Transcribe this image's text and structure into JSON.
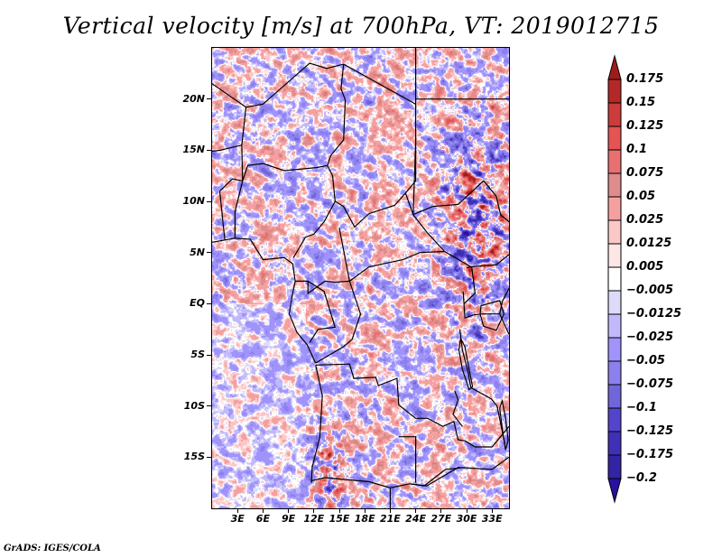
{
  "chart_data": {
    "type": "heatmap",
    "title": "Vertical velocity [m/s] at 700hPa, VT: 2019012715",
    "variable": "Vertical velocity",
    "units": "m/s",
    "level": "700hPa",
    "valid_time": "2019012715",
    "xlabel": "",
    "ylabel": "",
    "xlim": [
      0,
      35
    ],
    "ylim": [
      -20,
      25
    ],
    "x_ticks": [
      {
        "value": 3,
        "label": "3E"
      },
      {
        "value": 6,
        "label": "6E"
      },
      {
        "value": 9,
        "label": "9E"
      },
      {
        "value": 12,
        "label": "12E"
      },
      {
        "value": 15,
        "label": "15E"
      },
      {
        "value": 18,
        "label": "18E"
      },
      {
        "value": 21,
        "label": "21E"
      },
      {
        "value": 24,
        "label": "24E"
      },
      {
        "value": 27,
        "label": "27E"
      },
      {
        "value": 30,
        "label": "30E"
      },
      {
        "value": 33,
        "label": "33E"
      }
    ],
    "y_ticks": [
      {
        "value": 20,
        "label": "20N"
      },
      {
        "value": 15,
        "label": "15N"
      },
      {
        "value": 10,
        "label": "10N"
      },
      {
        "value": 5,
        "label": "5N"
      },
      {
        "value": 0,
        "label": "EQ"
      },
      {
        "value": -5,
        "label": "5S"
      },
      {
        "value": -10,
        "label": "10S"
      },
      {
        "value": -15,
        "label": "15S"
      }
    ],
    "colorbar": {
      "orientation": "vertical",
      "placement": "right",
      "extend": "both",
      "levels": [
        0.175,
        0.15,
        0.125,
        0.1,
        0.075,
        0.05,
        0.025,
        0.0125,
        0.005,
        -0.005,
        -0.0125,
        -0.025,
        -0.05,
        -0.075,
        -0.1,
        -0.125,
        -0.175,
        -0.2
      ],
      "labels": [
        "0.175",
        "0.15",
        "0.125",
        "0.1",
        "0.075",
        "0.05",
        "0.025",
        "0.0125",
        "0.005",
        "−0.005",
        "−0.0125",
        "−0.025",
        "−0.05",
        "−0.075",
        "−0.1",
        "−0.125",
        "−0.175",
        "−0.2"
      ],
      "colors_top_to_bottom": [
        "#a01c1c",
        "#b52828",
        "#cc3c3c",
        "#e55353",
        "#e87070",
        "#de8c8c",
        "#f5a0a0",
        "#fbc8c8",
        "#fde6e6",
        "#ffffff",
        "#dcdcfa",
        "#c2b9fb",
        "#a093fb",
        "#8c80ec",
        "#7066d9",
        "#5444cc",
        "#4030b8",
        "#3224a4",
        "#2810a0"
      ]
    },
    "grid": false,
    "basemap": "country boundaries (Central & Southern Africa)"
  },
  "footer": "GrADS: IGES/COLA"
}
